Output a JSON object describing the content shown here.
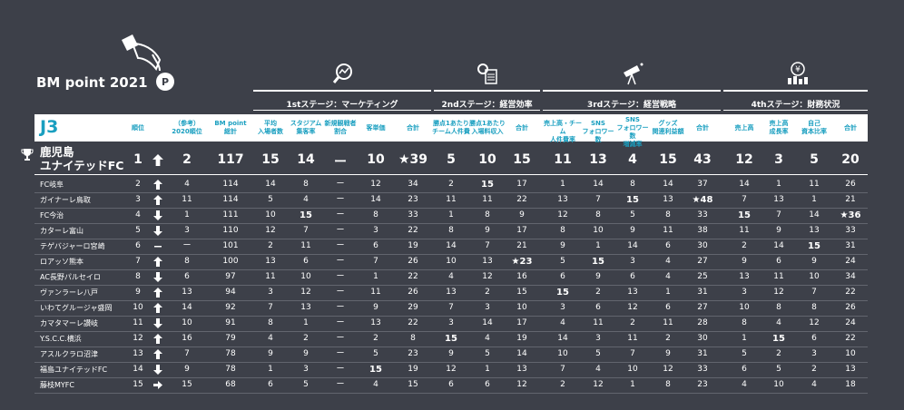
{
  "title": "BM point 2021",
  "league": "J3",
  "stages": [
    {
      "label": "1stステージ：マーケティング",
      "icon": "chart-magnifier-icon"
    },
    {
      "label": "2ndステージ：経営効率",
      "icon": "gear-document-icon"
    },
    {
      "label": "3rdステージ：経営戦略",
      "icon": "telescope-icon"
    },
    {
      "label": "4thステージ：財務状況",
      "icon": "yen-bag-icon"
    }
  ],
  "columns": [
    {
      "key": "rank",
      "label": "順位"
    },
    {
      "key": "move",
      "label": ""
    },
    {
      "key": "prev",
      "label": "（参考）\n2020順位"
    },
    {
      "key": "total",
      "label": "BM point\n総計"
    },
    {
      "key": "c1",
      "label": "平均\n入場者数"
    },
    {
      "key": "c2",
      "label": "スタジアム\n集客率"
    },
    {
      "key": "c3",
      "label": "新規観戦者\n割合"
    },
    {
      "key": "c4",
      "label": "客単価"
    },
    {
      "key": "c5",
      "label": "合計"
    },
    {
      "key": "c6",
      "label": "勝点1あたり\nチーム人件費"
    },
    {
      "key": "c7",
      "label": "勝点1あたり\n入場料収入"
    },
    {
      "key": "c8",
      "label": "合計"
    },
    {
      "key": "c9",
      "label": "売上高・チーム\n人件費率"
    },
    {
      "key": "c10",
      "label": "SNS\nフォロワー数"
    },
    {
      "key": "c11",
      "label": "SNS\nフォロワー数\n増減率"
    },
    {
      "key": "c12",
      "label": "グッズ\n関連利益額"
    },
    {
      "key": "c13",
      "label": "合計"
    },
    {
      "key": "c14",
      "label": "売上高"
    },
    {
      "key": "c15",
      "label": "売上高\n成長率"
    },
    {
      "key": "c16",
      "label": "自己\n資本比率"
    },
    {
      "key": "c17",
      "label": "合計"
    }
  ],
  "leader": {
    "name": "鹿児島\nユナイテッドFC",
    "values": [
      "1",
      "up",
      "2",
      "117",
      "15",
      "14",
      "ー",
      "10",
      "★39",
      "5",
      "10",
      "15",
      "11",
      "13",
      "4",
      "15",
      "43",
      "12",
      "3",
      "5",
      "20"
    ]
  },
  "rows": [
    {
      "name": "FC岐阜",
      "values": [
        "2",
        "up",
        "4",
        "114",
        "14",
        "8",
        "ー",
        "12",
        "34",
        "2",
        "15",
        "17",
        "1",
        "14",
        "8",
        "14",
        "37",
        "14",
        "1",
        "11",
        "26"
      ]
    },
    {
      "name": "ガイナーレ鳥取",
      "values": [
        "3",
        "up",
        "11",
        "114",
        "5",
        "4",
        "ー",
        "14",
        "23",
        "11",
        "11",
        "22",
        "13",
        "7",
        "15",
        "13",
        "★48",
        "7",
        "13",
        "1",
        "21"
      ]
    },
    {
      "name": "FC今治",
      "values": [
        "4",
        "down",
        "1",
        "111",
        "10",
        "15",
        "ー",
        "8",
        "33",
        "1",
        "8",
        "9",
        "12",
        "8",
        "5",
        "8",
        "33",
        "15",
        "7",
        "14",
        "★36"
      ]
    },
    {
      "name": "カターレ富山",
      "values": [
        "5",
        "down",
        "3",
        "110",
        "12",
        "7",
        "ー",
        "3",
        "22",
        "8",
        "9",
        "17",
        "8",
        "10",
        "9",
        "11",
        "38",
        "11",
        "9",
        "13",
        "33"
      ]
    },
    {
      "name": "テゲバジャーロ宮崎",
      "values": [
        "6",
        "flat",
        "ー",
        "101",
        "2",
        "11",
        "ー",
        "6",
        "19",
        "14",
        "7",
        "21",
        "9",
        "1",
        "14",
        "6",
        "30",
        "2",
        "14",
        "15",
        "31"
      ]
    },
    {
      "name": "ロアッソ熊本",
      "values": [
        "7",
        "up",
        "8",
        "100",
        "13",
        "6",
        "ー",
        "7",
        "26",
        "10",
        "13",
        "★23",
        "5",
        "15",
        "3",
        "4",
        "27",
        "9",
        "6",
        "9",
        "24"
      ]
    },
    {
      "name": "AC長野パルセイロ",
      "values": [
        "8",
        "down",
        "6",
        "97",
        "11",
        "10",
        "ー",
        "1",
        "22",
        "4",
        "12",
        "16",
        "6",
        "9",
        "6",
        "4",
        "25",
        "13",
        "11",
        "10",
        "34"
      ]
    },
    {
      "name": "ヴァンラーレ八戸",
      "values": [
        "9",
        "up",
        "13",
        "94",
        "3",
        "12",
        "ー",
        "11",
        "26",
        "13",
        "2",
        "15",
        "15",
        "2",
        "13",
        "1",
        "31",
        "3",
        "12",
        "7",
        "22"
      ]
    },
    {
      "name": "いわてグルージャ盛岡",
      "values": [
        "10",
        "up",
        "14",
        "92",
        "7",
        "13",
        "ー",
        "9",
        "29",
        "7",
        "3",
        "10",
        "3",
        "6",
        "12",
        "6",
        "27",
        "10",
        "8",
        "8",
        "26"
      ]
    },
    {
      "name": "カマタマーレ讃岐",
      "values": [
        "11",
        "down",
        "10",
        "91",
        "8",
        "1",
        "ー",
        "13",
        "22",
        "3",
        "14",
        "17",
        "4",
        "11",
        "2",
        "11",
        "28",
        "8",
        "4",
        "12",
        "24"
      ]
    },
    {
      "name": "Y.S.C.C.横浜",
      "values": [
        "12",
        "up",
        "16",
        "79",
        "4",
        "2",
        "ー",
        "2",
        "8",
        "15",
        "4",
        "19",
        "14",
        "3",
        "11",
        "2",
        "30",
        "1",
        "15",
        "6",
        "22"
      ]
    },
    {
      "name": "アスルクラロ沼津",
      "values": [
        "13",
        "up",
        "7",
        "78",
        "9",
        "9",
        "ー",
        "5",
        "23",
        "9",
        "5",
        "14",
        "10",
        "5",
        "7",
        "9",
        "31",
        "5",
        "2",
        "3",
        "10"
      ]
    },
    {
      "name": "福島ユナイテッドFC",
      "values": [
        "14",
        "down",
        "9",
        "78",
        "1",
        "3",
        "ー",
        "15",
        "19",
        "12",
        "1",
        "13",
        "7",
        "4",
        "10",
        "12",
        "33",
        "6",
        "5",
        "2",
        "13"
      ]
    },
    {
      "name": "藤枝MYFC",
      "values": [
        "15",
        "right",
        "15",
        "68",
        "6",
        "5",
        "ー",
        "4",
        "15",
        "6",
        "6",
        "12",
        "2",
        "12",
        "1",
        "8",
        "23",
        "4",
        "10",
        "4",
        "18"
      ]
    }
  ],
  "colors": {
    "background": "#3d4049",
    "accent": "#1a9fc0",
    "text": "#ffffff"
  }
}
